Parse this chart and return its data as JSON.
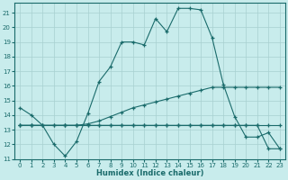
{
  "xlabel": "Humidex (Indice chaleur)",
  "background_color": "#c8ecec",
  "grid_color": "#a8d0d0",
  "line_color": "#1a6b6b",
  "xlim": [
    -0.5,
    23.5
  ],
  "ylim": [
    11,
    21.7
  ],
  "yticks": [
    11,
    12,
    13,
    14,
    15,
    16,
    17,
    18,
    19,
    20,
    21
  ],
  "xticks": [
    0,
    1,
    2,
    3,
    4,
    5,
    6,
    7,
    8,
    9,
    10,
    11,
    12,
    13,
    14,
    15,
    16,
    17,
    18,
    19,
    20,
    21,
    22,
    23
  ],
  "line1_x": [
    0,
    1,
    2,
    3,
    4,
    5,
    6,
    7,
    8,
    9,
    10,
    11,
    12,
    13,
    14,
    15,
    16,
    17,
    18,
    19,
    20,
    21,
    22,
    23
  ],
  "line1_y": [
    14.5,
    14.0,
    13.3,
    12.0,
    11.2,
    12.2,
    14.1,
    16.3,
    17.3,
    19.0,
    19.0,
    18.8,
    20.6,
    19.7,
    21.3,
    21.3,
    21.2,
    19.3,
    16.1,
    13.9,
    12.5,
    12.5,
    12.8,
    11.7
  ],
  "line2_x": [
    0,
    1,
    2,
    3,
    4,
    5,
    6,
    7,
    8,
    9,
    10,
    11,
    12,
    13,
    14,
    15,
    16,
    17,
    18,
    19,
    20,
    21,
    22,
    23
  ],
  "line2_y": [
    13.3,
    13.3,
    13.3,
    13.3,
    13.3,
    13.3,
    13.4,
    13.6,
    13.9,
    14.2,
    14.5,
    14.7,
    14.9,
    15.1,
    15.3,
    15.5,
    15.7,
    15.9,
    15.9,
    15.9,
    15.9,
    15.9,
    15.9,
    15.9
  ],
  "line3_x": [
    0,
    1,
    2,
    3,
    4,
    5,
    6,
    7,
    8,
    9,
    10,
    11,
    12,
    13,
    14,
    15,
    16,
    17,
    18,
    19,
    20,
    21,
    22,
    23
  ],
  "line3_y": [
    13.3,
    13.3,
    13.3,
    13.3,
    13.3,
    13.3,
    13.3,
    13.3,
    13.3,
    13.3,
    13.3,
    13.3,
    13.3,
    13.3,
    13.3,
    13.3,
    13.3,
    13.3,
    13.3,
    13.3,
    13.3,
    13.3,
    13.3,
    13.3
  ],
  "line4_x": [
    0,
    1,
    4,
    5,
    6,
    7,
    8,
    9,
    10,
    11,
    12,
    13,
    14,
    15,
    16,
    17,
    18,
    19,
    20,
    21,
    22,
    23
  ],
  "line4_y": [
    13.3,
    13.3,
    13.3,
    13.3,
    13.3,
    13.3,
    13.3,
    13.3,
    13.3,
    13.3,
    13.3,
    13.3,
    13.3,
    13.3,
    13.3,
    13.3,
    13.3,
    13.3,
    13.3,
    13.3,
    11.7,
    11.7
  ]
}
